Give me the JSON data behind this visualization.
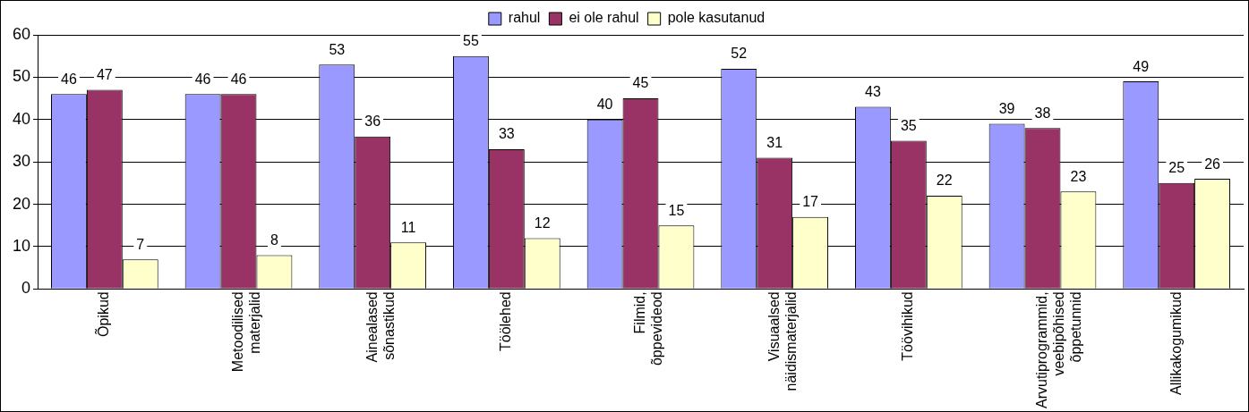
{
  "chart_data": {
    "type": "bar",
    "categories": [
      "Õpikud",
      "Metoodilised materjalid",
      "Ainealased sõnastikud",
      "Töölehed",
      "Filmid, õppevideod",
      "Visuaalsed näidismaterjalid",
      "Töövihikud",
      "Arvutiprogrammid, veebipõhised õppetunnid",
      "Allikakogumikud"
    ],
    "series": [
      {
        "name": "rahul",
        "color": "#9999ff",
        "values": [
          46,
          46,
          53,
          55,
          40,
          52,
          43,
          39,
          49
        ]
      },
      {
        "name": "ei ole rahul",
        "color": "#993366",
        "values": [
          47,
          46,
          36,
          33,
          45,
          31,
          35,
          38,
          25
        ]
      },
      {
        "name": "pole kasutanud",
        "color": "#ffffcc",
        "values": [
          7,
          8,
          11,
          12,
          15,
          17,
          22,
          23,
          26
        ]
      }
    ],
    "ylim": [
      0,
      60
    ],
    "yticks": [
      0,
      10,
      20,
      30,
      40,
      50,
      60
    ],
    "grid": "y",
    "legend": "top",
    "data_labels": true
  }
}
